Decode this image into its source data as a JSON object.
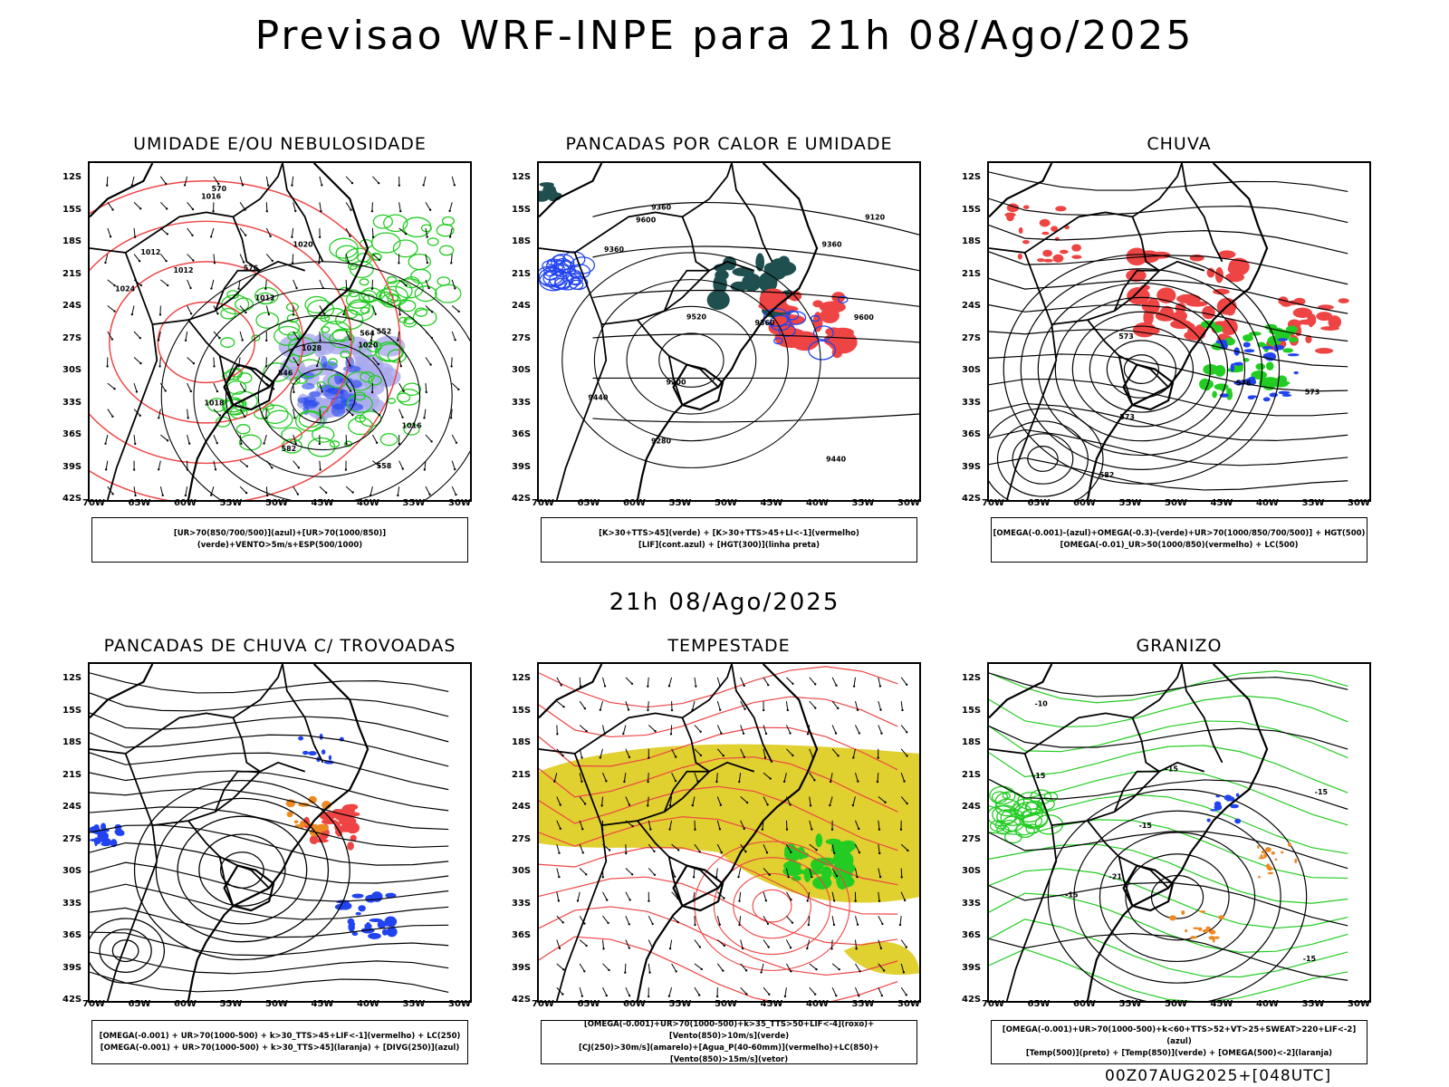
{
  "title": "Previsao WRF-INPE  para 21h 08/Ago/2025",
  "mid_date": "21h 08/Ago/2025",
  "footer": "00Z07AUG2025+[048UTC]",
  "lat_labels": [
    "12S",
    "15S",
    "18S",
    "21S",
    "24S",
    "27S",
    "30S",
    "33S",
    "36S",
    "39S",
    "42S"
  ],
  "lon_labels": [
    "70W",
    "65W",
    "60W",
    "55W",
    "50W",
    "45W",
    "40W",
    "35W",
    "30W"
  ],
  "colors": {
    "green": "#22cc22",
    "red": "#ee4444",
    "blue": "#2244ee",
    "lavender": "#aaaaee",
    "darkteal": "#1f4f4f",
    "yellow": "#e0d030",
    "orange": "#ee8822",
    "black": "#000000"
  },
  "panels": [
    {
      "id": "umidade",
      "title": "UMIDADE E/OU NEBULOSIDADE",
      "legend": [
        "[UR>70(850/700/500)](azul)+[UR>70(1000/850)](verde)+VENTO>5m/s+ESP(500/1000)"
      ],
      "labels": [
        "1012",
        "1012",
        "1012",
        "1016",
        "1018",
        "1020",
        "1024",
        "1028",
        "1016",
        "1020",
        "570",
        "564",
        "558",
        "552",
        "546",
        "582",
        "576"
      ]
    },
    {
      "id": "pancadas-calor",
      "title": "PANCADAS POR CALOR E UMIDADE",
      "legend": [
        "[K>30+TTS>45](verde) + [K>30+TTS>45+LI<-1](vermelho)",
        "[LIF](cont.azul) + [HGT(300)](linha preta)"
      ],
      "labels": [
        "9600",
        "9600",
        "9520",
        "9440",
        "9440",
        "9360",
        "9360",
        "9280",
        "9200",
        "9120",
        "9360",
        "9360"
      ]
    },
    {
      "id": "chuva",
      "title": "CHUVA",
      "legend": [
        "[OMEGA(-0.001)-(azul)+OMEGA(-0.3)-(verde)+UR>70(1000/850/700/500)] + HGT(500)",
        "[OMEGA(-0.01)_UR>50(1000/850)(vermelho) + LC(500)"
      ],
      "labels": [
        "582",
        "576",
        "573",
        "573",
        "573"
      ]
    },
    {
      "id": "trovoadas",
      "title": "PANCADAS DE CHUVA C/ TROVOADAS",
      "legend": [
        "[OMEGA(-0.001) + UR>70(1000-500) + k>30_TTS>45+LIF<-1](vermelho) + LC(250)",
        "[OMEGA(-0.001) + UR>70(1000-500) + k>30_TTS>45](laranja) + [DIVG(250)](azul)"
      ],
      "labels": []
    },
    {
      "id": "tempestade",
      "title": "TEMPESTADE",
      "legend": [
        "[OMEGA(-0.001)+UR>70(1000-500)+k>35_TTS>50+LIF<-4](roxo)+[Vento(850)>10m/s](verde)",
        "[CJ(250)>30m/s](amarelo)+[Agua_P(40-60mm)](vermelho)+LC(850)+[Vento(850)>15m/s](vetor)"
      ],
      "labels": []
    },
    {
      "id": "granizo",
      "title": "GRANIZO",
      "legend": [
        "[OMEGA(-0.001)+UR>70(1000-500)+k<60+TTS>52+VT>25+SWEAT>220+LIF<-2](azul)",
        "[Temp(500)](preto) + [Temp(850)](verde) + [OMEGA(500)<-2](laranja)"
      ],
      "labels": [
        "-15",
        "-15",
        "-15",
        "-15",
        "-21",
        "-15",
        "-15",
        "-10"
      ]
    }
  ]
}
